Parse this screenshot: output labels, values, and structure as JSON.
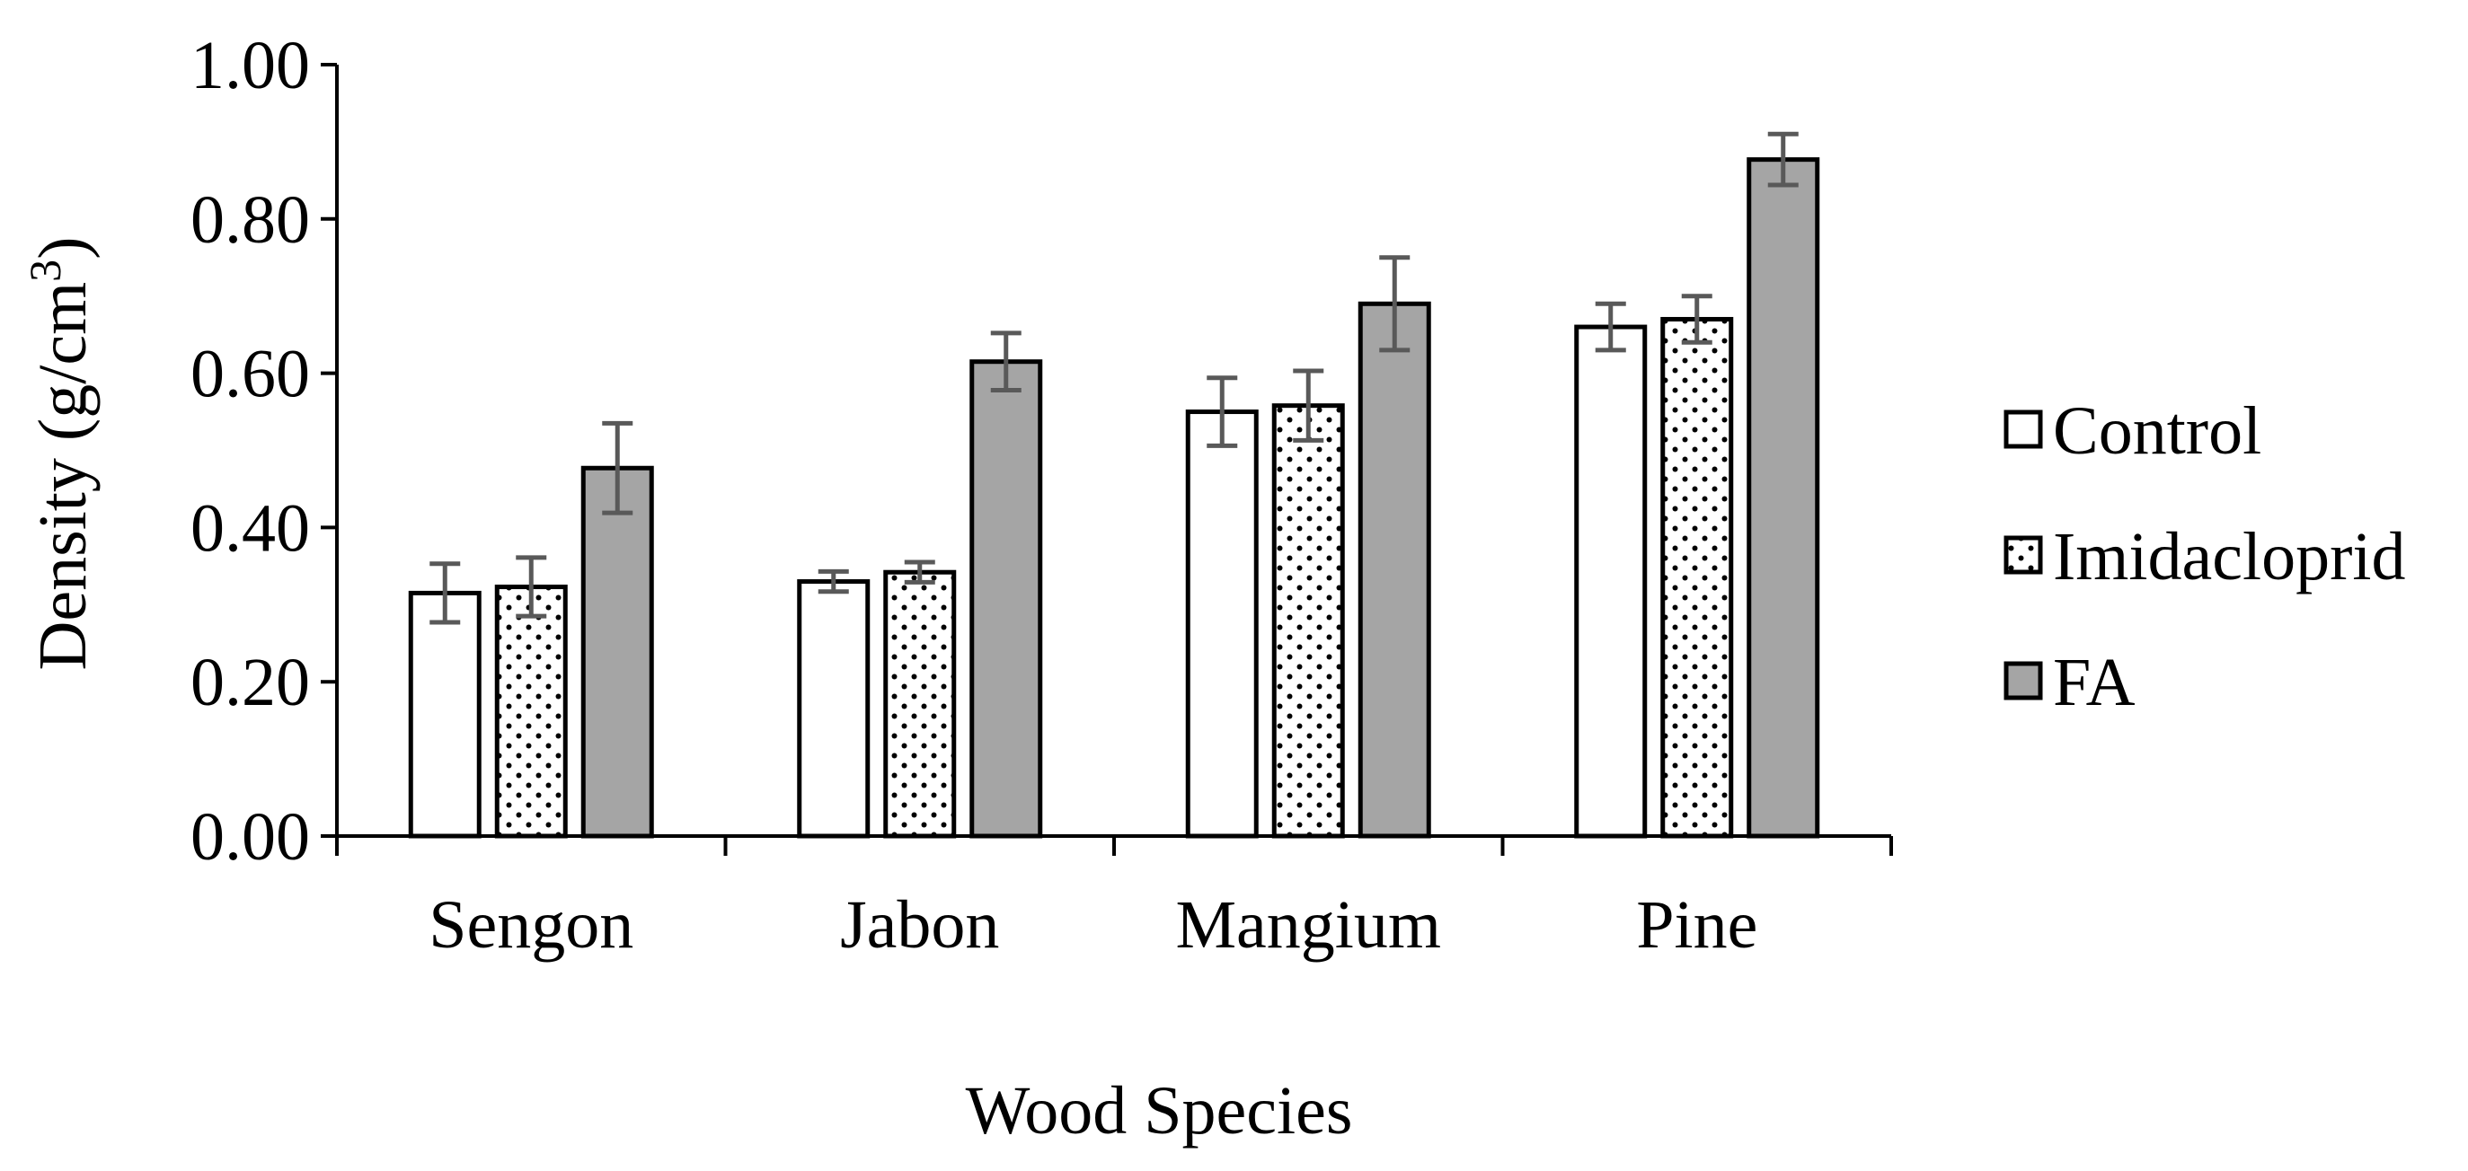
{
  "chart_data": {
    "type": "bar",
    "title": "",
    "xlabel": "Wood Species",
    "ylabel": {
      "main": "Density (g/cm",
      "sup": "3",
      "end": ")"
    },
    "categories": [
      "Sengon",
      "Jabon",
      "Mangium",
      "Pine"
    ],
    "ylim": [
      0,
      1
    ],
    "yticks": [
      "0.00",
      "0.20",
      "0.40",
      "0.60",
      "0.80",
      "1.00"
    ],
    "ytick_values": [
      0,
      0.2,
      0.4,
      0.6,
      0.8,
      1.0
    ],
    "grid": false,
    "legend_position": "right",
    "series": [
      {
        "name": "Control",
        "pattern": "white",
        "values": [
          0.315,
          0.33,
          0.55,
          0.66
        ],
        "errors": [
          0.038,
          0.013,
          0.044,
          0.03
        ]
      },
      {
        "name": "Imidacloprid",
        "pattern": "dots",
        "values": [
          0.323,
          0.342,
          0.558,
          0.67
        ],
        "errors": [
          0.038,
          0.013,
          0.045,
          0.03
        ]
      },
      {
        "name": "FA",
        "pattern": "gray",
        "values": [
          0.477,
          0.615,
          0.69,
          0.877
        ],
        "errors": [
          0.058,
          0.037,
          0.06,
          0.033
        ]
      }
    ]
  },
  "colors": {
    "axis": "#000000",
    "bar_edge": "#000000",
    "fa_fill": "#a5a5a5",
    "control_fill": "#ffffff",
    "dot": "#000000",
    "error_bar": "#595959"
  }
}
